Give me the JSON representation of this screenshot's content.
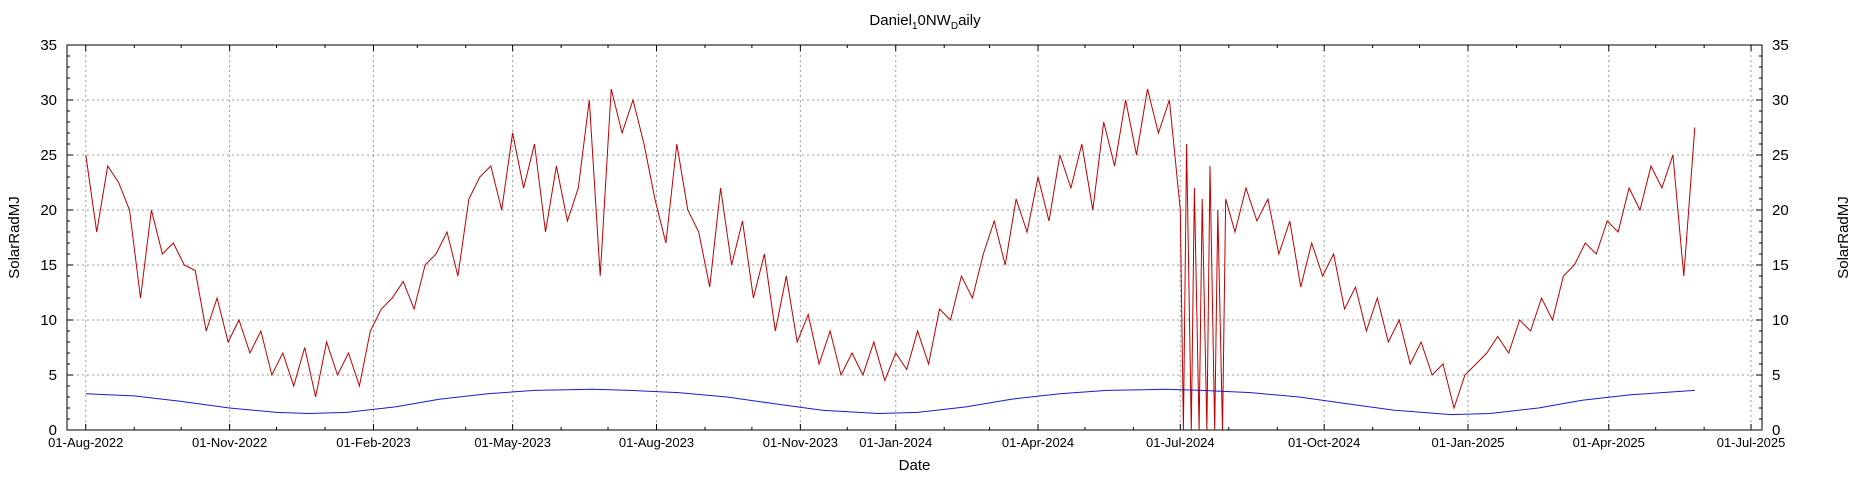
{
  "chart_data": {
    "type": "line",
    "title": {
      "main": "Daniel",
      "sub1": "1",
      "mid": "0NW",
      "sub2": "D",
      "end": "aily"
    },
    "xlabel": "Date",
    "ylabel_left": "SolarRadMJ",
    "ylabel_right": "SolarRadMJ",
    "x_range": [
      "2022-07-20",
      "2025-07-08"
    ],
    "ylim": [
      0,
      35
    ],
    "yticks": [
      0,
      5,
      10,
      15,
      20,
      25,
      30,
      35
    ],
    "x_ticks": [
      {
        "date": "2022-08-01",
        "label": "01-Aug-2022"
      },
      {
        "date": "2022-11-01",
        "label": "01-Nov-2022"
      },
      {
        "date": "2023-02-01",
        "label": "01-Feb-2023"
      },
      {
        "date": "2023-05-01",
        "label": "01-May-2023"
      },
      {
        "date": "2023-08-01",
        "label": "01-Aug-2023"
      },
      {
        "date": "2023-11-01",
        "label": "01-Nov-2023"
      },
      {
        "date": "2024-01-01",
        "label": "01-Jan-2024"
      },
      {
        "date": "2024-04-01",
        "label": "01-Apr-2024"
      },
      {
        "date": "2024-07-01",
        "label": "01-Jul-2024"
      },
      {
        "date": "2024-10-01",
        "label": "01-Oct-2024"
      },
      {
        "date": "2025-01-01",
        "label": "01-Jan-2025"
      },
      {
        "date": "2025-04-01",
        "label": "01-Apr-2025"
      },
      {
        "date": "2025-07-01",
        "label": "01-Jul-2025"
      }
    ],
    "grid": true,
    "series": [
      {
        "color": "#c00000",
        "points": [
          [
            "2022-08-01",
            25.0
          ],
          [
            "2022-08-08",
            18.0
          ],
          [
            "2022-08-15",
            24.0
          ],
          [
            "2022-08-22",
            22.5
          ],
          [
            "2022-08-29",
            20.0
          ],
          [
            "2022-09-05",
            12.0
          ],
          [
            "2022-09-12",
            20.0
          ],
          [
            "2022-09-19",
            16.0
          ],
          [
            "2022-09-26",
            17.0
          ],
          [
            "2022-10-03",
            15.0
          ],
          [
            "2022-10-10",
            14.5
          ],
          [
            "2022-10-17",
            9.0
          ],
          [
            "2022-10-24",
            12.0
          ],
          [
            "2022-10-31",
            8.0
          ],
          [
            "2022-11-07",
            10.0
          ],
          [
            "2022-11-14",
            7.0
          ],
          [
            "2022-11-21",
            9.0
          ],
          [
            "2022-11-28",
            5.0
          ],
          [
            "2022-12-05",
            7.0
          ],
          [
            "2022-12-12",
            4.0
          ],
          [
            "2022-12-19",
            7.5
          ],
          [
            "2022-12-26",
            3.0
          ],
          [
            "2023-01-02",
            8.0
          ],
          [
            "2023-01-09",
            5.0
          ],
          [
            "2023-01-16",
            7.0
          ],
          [
            "2023-01-23",
            4.0
          ],
          [
            "2023-01-30",
            9.0
          ],
          [
            "2023-02-06",
            11.0
          ],
          [
            "2023-02-13",
            12.0
          ],
          [
            "2023-02-20",
            13.5
          ],
          [
            "2023-02-27",
            11.0
          ],
          [
            "2023-03-06",
            15.0
          ],
          [
            "2023-03-13",
            16.0
          ],
          [
            "2023-03-20",
            18.0
          ],
          [
            "2023-03-27",
            14.0
          ],
          [
            "2023-04-03",
            21.0
          ],
          [
            "2023-04-10",
            23.0
          ],
          [
            "2023-04-17",
            24.0
          ],
          [
            "2023-04-24",
            20.0
          ],
          [
            "2023-05-01",
            27.0
          ],
          [
            "2023-05-08",
            22.0
          ],
          [
            "2023-05-15",
            26.0
          ],
          [
            "2023-05-22",
            18.0
          ],
          [
            "2023-05-29",
            24.0
          ],
          [
            "2023-06-05",
            19.0
          ],
          [
            "2023-06-12",
            22.0
          ],
          [
            "2023-06-19",
            30.0
          ],
          [
            "2023-06-26",
            14.0
          ],
          [
            "2023-07-03",
            31.0
          ],
          [
            "2023-07-10",
            27.0
          ],
          [
            "2023-07-17",
            30.0
          ],
          [
            "2023-07-24",
            26.0
          ],
          [
            "2023-07-31",
            21.0
          ],
          [
            "2023-08-07",
            17.0
          ],
          [
            "2023-08-14",
            26.0
          ],
          [
            "2023-08-21",
            20.0
          ],
          [
            "2023-08-28",
            18.0
          ],
          [
            "2023-09-04",
            13.0
          ],
          [
            "2023-09-11",
            22.0
          ],
          [
            "2023-09-18",
            15.0
          ],
          [
            "2023-09-25",
            19.0
          ],
          [
            "2023-10-02",
            12.0
          ],
          [
            "2023-10-09",
            16.0
          ],
          [
            "2023-10-16",
            9.0
          ],
          [
            "2023-10-23",
            14.0
          ],
          [
            "2023-10-30",
            8.0
          ],
          [
            "2023-11-06",
            10.5
          ],
          [
            "2023-11-13",
            6.0
          ],
          [
            "2023-11-20",
            9.0
          ],
          [
            "2023-11-27",
            5.0
          ],
          [
            "2023-12-04",
            7.0
          ],
          [
            "2023-12-11",
            5.0
          ],
          [
            "2023-12-18",
            8.0
          ],
          [
            "2023-12-25",
            4.5
          ],
          [
            "2024-01-01",
            7.0
          ],
          [
            "2024-01-08",
            5.5
          ],
          [
            "2024-01-15",
            9.0
          ],
          [
            "2024-01-22",
            6.0
          ],
          [
            "2024-01-29",
            11.0
          ],
          [
            "2024-02-05",
            10.0
          ],
          [
            "2024-02-12",
            14.0
          ],
          [
            "2024-02-19",
            12.0
          ],
          [
            "2024-02-26",
            16.0
          ],
          [
            "2024-03-04",
            19.0
          ],
          [
            "2024-03-11",
            15.0
          ],
          [
            "2024-03-18",
            21.0
          ],
          [
            "2024-03-25",
            18.0
          ],
          [
            "2024-04-01",
            23.0
          ],
          [
            "2024-04-08",
            19.0
          ],
          [
            "2024-04-15",
            25.0
          ],
          [
            "2024-04-22",
            22.0
          ],
          [
            "2024-04-29",
            26.0
          ],
          [
            "2024-05-06",
            20.0
          ],
          [
            "2024-05-13",
            28.0
          ],
          [
            "2024-05-20",
            24.0
          ],
          [
            "2024-05-27",
            30.0
          ],
          [
            "2024-06-03",
            25.0
          ],
          [
            "2024-06-10",
            31.0
          ],
          [
            "2024-06-17",
            27.0
          ],
          [
            "2024-06-24",
            30.0
          ],
          [
            "2024-07-01",
            20.0
          ],
          [
            "2024-07-03",
            0.0
          ],
          [
            "2024-07-05",
            26.0
          ],
          [
            "2024-07-08",
            0.0
          ],
          [
            "2024-07-10",
            22.0
          ],
          [
            "2024-07-13",
            0.0
          ],
          [
            "2024-07-15",
            21.0
          ],
          [
            "2024-07-18",
            0.0
          ],
          [
            "2024-07-20",
            24.0
          ],
          [
            "2024-07-23",
            0.0
          ],
          [
            "2024-07-25",
            20.0
          ],
          [
            "2024-07-28",
            0.0
          ],
          [
            "2024-07-30",
            21.0
          ],
          [
            "2024-08-05",
            18.0
          ],
          [
            "2024-08-12",
            22.0
          ],
          [
            "2024-08-19",
            19.0
          ],
          [
            "2024-08-26",
            21.0
          ],
          [
            "2024-09-02",
            16.0
          ],
          [
            "2024-09-09",
            19.0
          ],
          [
            "2024-09-16",
            13.0
          ],
          [
            "2024-09-23",
            17.0
          ],
          [
            "2024-09-30",
            14.0
          ],
          [
            "2024-10-07",
            16.0
          ],
          [
            "2024-10-14",
            11.0
          ],
          [
            "2024-10-21",
            13.0
          ],
          [
            "2024-10-28",
            9.0
          ],
          [
            "2024-11-04",
            12.0
          ],
          [
            "2024-11-11",
            8.0
          ],
          [
            "2024-11-18",
            10.0
          ],
          [
            "2024-11-25",
            6.0
          ],
          [
            "2024-12-02",
            8.0
          ],
          [
            "2024-12-09",
            5.0
          ],
          [
            "2024-12-16",
            6.0
          ],
          [
            "2024-12-23",
            2.0
          ],
          [
            "2024-12-30",
            5.0
          ],
          [
            "2025-01-06",
            6.0
          ],
          [
            "2025-01-13",
            7.0
          ],
          [
            "2025-01-20",
            8.5
          ],
          [
            "2025-01-27",
            7.0
          ],
          [
            "2025-02-03",
            10.0
          ],
          [
            "2025-02-10",
            9.0
          ],
          [
            "2025-02-17",
            12.0
          ],
          [
            "2025-02-24",
            10.0
          ],
          [
            "2025-03-03",
            14.0
          ],
          [
            "2025-03-10",
            15.0
          ],
          [
            "2025-03-17",
            17.0
          ],
          [
            "2025-03-24",
            16.0
          ],
          [
            "2025-03-31",
            19.0
          ],
          [
            "2025-04-07",
            18.0
          ],
          [
            "2025-04-14",
            22.0
          ],
          [
            "2025-04-21",
            20.0
          ],
          [
            "2025-04-28",
            24.0
          ],
          [
            "2025-05-05",
            22.0
          ],
          [
            "2025-05-12",
            25.0
          ],
          [
            "2025-05-19",
            14.0
          ],
          [
            "2025-05-26",
            27.5
          ]
        ]
      },
      {
        "color": "#1a1ad0",
        "points": [
          [
            "2022-08-01",
            3.3
          ],
          [
            "2022-09-01",
            3.1
          ],
          [
            "2022-10-01",
            2.6
          ],
          [
            "2022-11-01",
            2.0
          ],
          [
            "2022-12-01",
            1.6
          ],
          [
            "2022-12-22",
            1.5
          ],
          [
            "2023-01-15",
            1.6
          ],
          [
            "2023-02-15",
            2.1
          ],
          [
            "2023-03-15",
            2.8
          ],
          [
            "2023-04-15",
            3.3
          ],
          [
            "2023-05-15",
            3.6
          ],
          [
            "2023-06-21",
            3.7
          ],
          [
            "2023-07-15",
            3.6
          ],
          [
            "2023-08-15",
            3.4
          ],
          [
            "2023-09-15",
            3.0
          ],
          [
            "2023-10-15",
            2.4
          ],
          [
            "2023-11-15",
            1.8
          ],
          [
            "2023-12-21",
            1.5
          ],
          [
            "2024-01-15",
            1.6
          ],
          [
            "2024-02-15",
            2.1
          ],
          [
            "2024-03-15",
            2.8
          ],
          [
            "2024-04-15",
            3.3
          ],
          [
            "2024-05-15",
            3.6
          ],
          [
            "2024-06-21",
            3.7
          ],
          [
            "2024-07-15",
            3.6
          ],
          [
            "2024-08-15",
            3.4
          ],
          [
            "2024-09-15",
            3.0
          ],
          [
            "2024-10-15",
            2.4
          ],
          [
            "2024-11-15",
            1.8
          ],
          [
            "2024-12-21",
            1.4
          ],
          [
            "2025-01-15",
            1.5
          ],
          [
            "2025-02-15",
            2.0
          ],
          [
            "2025-03-15",
            2.7
          ],
          [
            "2025-04-15",
            3.2
          ],
          [
            "2025-05-26",
            3.6
          ]
        ]
      }
    ]
  }
}
